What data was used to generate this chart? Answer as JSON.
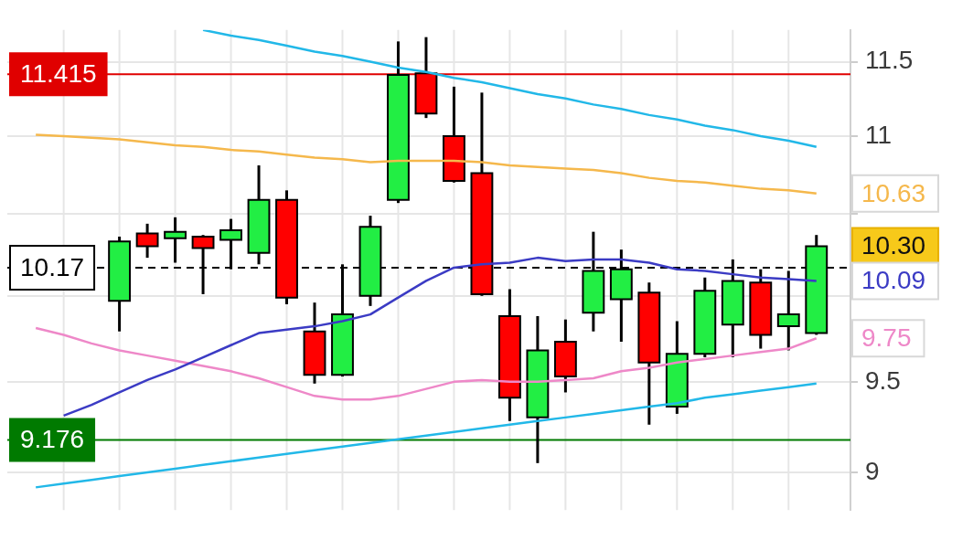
{
  "chart_data": {
    "type": "candlestick",
    "categories": [
      null,
      null,
      null,
      null,
      null,
      null,
      null,
      null,
      null,
      null,
      null,
      null,
      null,
      null,
      null,
      null,
      null,
      null,
      null,
      null,
      null,
      null,
      null,
      null,
      null,
      null,
      null,
      null,
      null
    ],
    "ohlc": [
      null,
      null,
      null,
      [
        9.97,
        10.36,
        9.79,
        10.33
      ],
      [
        10.38,
        10.44,
        10.23,
        10.3
      ],
      [
        10.35,
        10.48,
        10.2,
        10.39
      ],
      [
        10.36,
        10.37,
        10.01,
        10.29
      ],
      [
        10.34,
        10.47,
        10.16,
        10.4
      ],
      [
        10.26,
        10.81,
        10.19,
        10.59
      ],
      [
        10.59,
        10.65,
        9.95,
        9.99
      ],
      [
        9.79,
        9.96,
        9.49,
        9.54
      ],
      [
        9.54,
        10.19,
        9.53,
        9.89
      ],
      [
        10.0,
        10.49,
        9.94,
        10.42
      ],
      [
        10.59,
        11.64,
        10.57,
        11.41
      ],
      [
        11.42,
        11.67,
        11.12,
        11.15
      ],
      [
        11.0,
        11.33,
        10.7,
        10.71
      ],
      [
        10.76,
        11.29,
        10.0,
        10.01
      ],
      [
        9.88,
        10.04,
        9.28,
        9.41
      ],
      [
        9.3,
        9.88,
        9.05,
        9.68
      ],
      [
        9.73,
        9.86,
        9.44,
        9.53
      ],
      [
        9.9,
        10.39,
        9.79,
        10.15
      ],
      [
        9.98,
        10.28,
        9.73,
        10.16
      ],
      [
        10.02,
        10.08,
        9.26,
        9.61
      ],
      [
        9.36,
        9.85,
        9.32,
        9.66
      ],
      [
        9.66,
        10.11,
        9.64,
        10.03
      ],
      [
        9.83,
        10.22,
        9.64,
        10.09
      ],
      [
        10.08,
        10.16,
        9.69,
        9.77
      ],
      [
        9.82,
        10.15,
        9.68,
        9.89
      ],
      [
        9.78,
        10.37,
        9.77,
        10.3
      ]
    ],
    "colors": [
      null,
      null,
      null,
      "#22ee44",
      "#ff0000",
      "#22ee44",
      "#ff0000",
      "#22ee44",
      "#22ee44",
      "#ff0000",
      "#ff0000",
      "#22ee44",
      "#22ee44",
      "#22ee44",
      "#ff0000",
      "#ff0000",
      "#ff0000",
      "#ff0000",
      "#22ee44",
      "#ff0000",
      "#22ee44",
      "#22ee44",
      "#ff0000",
      "#22ee44",
      "#22ee44",
      "#22ee44",
      "#ff0000",
      "#22ee44",
      "#22ee44"
    ],
    "value_labels": [
      null,
      null,
      null,
      null,
      null,
      null,
      null,
      null,
      null,
      null,
      null,
      null,
      null,
      null,
      null,
      null,
      null,
      null,
      null,
      null,
      null,
      null,
      null,
      null,
      null,
      null,
      null,
      null,
      "10.30"
    ],
    "series": [
      {
        "type": "line",
        "color": "#f5b84c",
        "values": [
          11.01,
          11.0,
          10.99,
          10.98,
          10.96,
          10.94,
          10.93,
          10.91,
          10.9,
          10.88,
          10.86,
          10.85,
          10.83,
          10.84,
          10.84,
          10.84,
          10.83,
          10.81,
          10.8,
          10.79,
          10.78,
          10.76,
          10.73,
          10.71,
          10.7,
          10.68,
          10.66,
          10.65,
          10.63
        ],
        "value_labels": [
          null,
          null,
          null,
          null,
          null,
          null,
          null,
          null,
          null,
          null,
          null,
          null,
          null,
          null,
          null,
          null,
          null,
          null,
          null,
          null,
          null,
          null,
          null,
          null,
          null,
          null,
          null,
          null,
          "10.63"
        ]
      },
      {
        "type": "line",
        "color": "#3b3bc4",
        "values": [
          null,
          9.31,
          9.37,
          9.44,
          9.51,
          9.57,
          9.64,
          9.71,
          9.78,
          9.8,
          9.82,
          9.85,
          9.89,
          9.99,
          10.09,
          10.17,
          10.19,
          10.2,
          10.23,
          10.21,
          10.22,
          10.22,
          10.2,
          10.16,
          10.15,
          10.13,
          10.11,
          10.1,
          10.09
        ],
        "value_labels": [
          null,
          null,
          null,
          null,
          null,
          null,
          null,
          null,
          null,
          null,
          null,
          null,
          null,
          null,
          null,
          null,
          null,
          null,
          null,
          null,
          null,
          null,
          null,
          null,
          null,
          null,
          null,
          null,
          "10.09"
        ]
      },
      {
        "type": "line",
        "color": "#ee88c8",
        "values": [
          9.81,
          9.77,
          9.72,
          9.68,
          9.65,
          9.62,
          9.59,
          9.56,
          9.52,
          9.47,
          9.42,
          9.4,
          9.4,
          9.42,
          9.46,
          9.5,
          9.51,
          9.5,
          9.5,
          9.51,
          9.52,
          9.56,
          9.58,
          9.61,
          9.63,
          9.65,
          9.67,
          9.69,
          9.75
        ],
        "value_labels": [
          null,
          null,
          null,
          null,
          null,
          null,
          null,
          null,
          null,
          null,
          null,
          null,
          null,
          null,
          null,
          null,
          null,
          null,
          null,
          null,
          null,
          null,
          null,
          null,
          null,
          null,
          null,
          null,
          "9.75"
        ]
      },
      {
        "type": "line",
        "color": "#22b8e8",
        "values": [
          null,
          null,
          null,
          null,
          null,
          null,
          11.72,
          11.68,
          11.65,
          11.61,
          11.57,
          11.54,
          11.5,
          11.46,
          11.43,
          11.39,
          11.36,
          11.32,
          11.28,
          11.25,
          11.21,
          11.18,
          11.14,
          11.11,
          11.07,
          11.04,
          11.0,
          10.97,
          10.93
        ]
      },
      {
        "type": "line",
        "color": "#22b8e8",
        "values": [
          8.92,
          8.94,
          8.96,
          8.98,
          9.0,
          9.02,
          9.04,
          9.06,
          9.08,
          9.1,
          9.12,
          9.14,
          9.16,
          9.18,
          9.2,
          9.22,
          9.24,
          9.26,
          9.28,
          9.3,
          9.32,
          9.34,
          9.36,
          9.38,
          9.41,
          9.43,
          9.45,
          9.47,
          9.49
        ]
      }
    ],
    "ref_lines": [
      {
        "axis": "y",
        "value": 11.415,
        "label": "11.415",
        "color": "#e00000"
      },
      {
        "axis": "y",
        "value": 10.17,
        "label": "10.17",
        "color": "#000000",
        "line_style": "dashed"
      },
      {
        "axis": "y",
        "value": 9.176,
        "label": "9.176",
        "color": "#007a00"
      }
    ],
    "ylim": [
      8.8,
      11.72
    ],
    "yticks": [
      9,
      9.5,
      {
        "value": 10,
        "label": null
      },
      {
        "value": 10.5,
        "label": null
      },
      11,
      11.5
    ],
    "log": true,
    "grid": true,
    "tick_labels": "y"
  }
}
